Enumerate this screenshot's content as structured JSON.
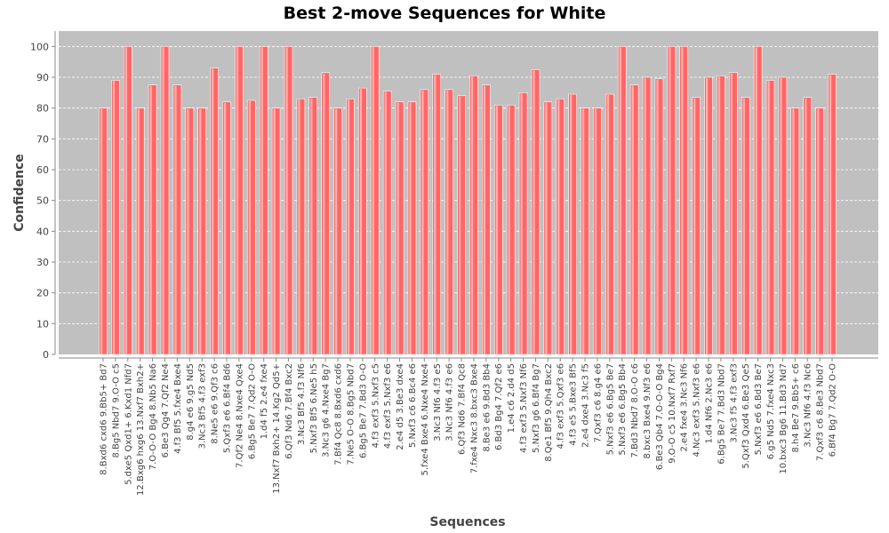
{
  "chart_data": {
    "type": "bar",
    "title": "Best 2-move Sequences for White",
    "xlabel": "Sequences",
    "ylabel": "Confidence",
    "ylim": [
      0,
      105
    ],
    "yticks": [
      0,
      10,
      20,
      30,
      40,
      50,
      60,
      70,
      80,
      90,
      100
    ],
    "grid": true,
    "legend": "none",
    "colors": {
      "plot_bg": "#c0c0c0",
      "bar": "#ff6666",
      "bar_highlight": "#ffb0b0",
      "grid": "#ffffff",
      "axis": "#888888"
    },
    "categories": [
      "8.Bxd6 cxd6 9.Bb5+ Bd7",
      "8.Bg5 Nbd7 9.O-O c5",
      "5.dxe5 Qxd1+ 6.Kxd1 Nfd7",
      "12.Bxg6 hxg6 13.Nxf7 Bxh2+",
      "7.O-O-O Bg4 8.Nb5 Na6",
      "6.Be3 Qg4 7.Qf2 Ne4",
      "4.f3 Bf5 5.fxe4 Bxe4",
      "8.g4 e6 9.g5 Nd5",
      "3.Nc3 Bf5 4.f3 exf3",
      "8.Ne5 e6 9.Qf3 c6",
      "5.Qxf3 e6 6.Bf4 Bd6",
      "7.Qf2 Ne4 8.Nxe4 Qxe4",
      "6.Bg5 Be7 7.Qd2 O-O",
      "1.d4 f5 2.e4 fxe4",
      "13.Nxf7 Bxh2+ 14.Kg2 Qd5+",
      "6.Qf3 Nd6 7.Bf4 Bxc2",
      "3.Nc3 Bf5 4.f3 Nf6",
      "5.Nxf3 Bf5 6.Ne5 h5",
      "3.Nc3 g6 4.Nxe4 Bg7",
      "7.Bf4 Qc8 8.Bxd6 cxd6",
      "7.Ne5 O-O 8.Bg5 Nbd7",
      "6.Bg5 Be7 7.Bd3 O-O",
      "4.f3 exf3 5.Nxf3 c5",
      "4.f3 exf3 5.Nxf3 e6",
      "2.e4 d5 3.Be3 dxe4",
      "5.Nxf3 c6 6.Bc4 e6",
      "5.fxe4 Bxe4 6.Nxe4 Nxe4",
      "3.Nc3 Nf6 4.f3 e5",
      "3.Nc3 Nf6 4.f3 e6",
      "6.Qf3 Nd6 7.Bf4 Qc8",
      "7.fxe4 Nxc3 8.bxc3 Bxe4",
      "8.Be3 e6 9.Bd3 Bb4",
      "6.Bd3 Bg4 7.Qf2 e6",
      "1.e4 c6 2.d4 d5",
      "4.f3 exf3 5.Nxf3 Nf6",
      "5.Nxf3 g6 6.Bf4 Bg7",
      "8.Qe1 Bf5 9.Qh4 Bxc2",
      "4.f3 exf3 5.Qxf3 e6",
      "4.f3 e5 5.Bxe3 Bf5",
      "2.e4 dxe4 3.Nc3 f5",
      "7.Qxf3 c6 8.g4 e6",
      "5.Nxf3 e6 6.Bg5 Be7",
      "5.Nxf3 e6 6.Bg5 Bb4",
      "7.Bd3 Nbd7 8.O-O c6",
      "8.bxc3 Bxe4 9.Nf3 e6",
      "6.Be3 Qb4 7.O-O-O Bg4",
      "9.O-O c5 10.Nxf7 Rxf7",
      "2.e4 fxe4 3.Nc3 Nf6",
      "4.Nc3 exf3 5.Nxf3 e6",
      "1.d4 Nf6 2.Nc3 e6",
      "6.Bg5 Be7 7.Bd3 Nbd7",
      "3.Nc3 f5 4.f3 exf3",
      "5.Qxf3 Qxd4 6.Be3 Qe5",
      "5.Nxf3 e6 6.Bd3 Be7",
      "6.g5 Nd5 7.fxe4 Nxc3",
      "10.bxc3 Bg6 11.Bd3 Nd7",
      "8.h4 Be7 9.Bb5+ c6",
      "3.Nc3 Nf6 4.f3 Nc6",
      "7.Qxf3 c6 8.Be3 Nbd7",
      "6.Bf4 Bg7 7.Qd2 O-O"
    ],
    "values": [
      80,
      89,
      100,
      80,
      87.5,
      100,
      87.5,
      80,
      80,
      93,
      82,
      100,
      82.5,
      100,
      80,
      100,
      83,
      83.5,
      91.5,
      80,
      83,
      86.5,
      100,
      85.5,
      82,
      82,
      86,
      91,
      86,
      84,
      90.5,
      87.5,
      81,
      81,
      85,
      92.5,
      82,
      83,
      84.5,
      80,
      80,
      84.5,
      100,
      87.5,
      90,
      89.5,
      100,
      100,
      83.5,
      90,
      90.5,
      91.5,
      83.5,
      100,
      89,
      90,
      80,
      83.5,
      80,
      91
    ]
  }
}
